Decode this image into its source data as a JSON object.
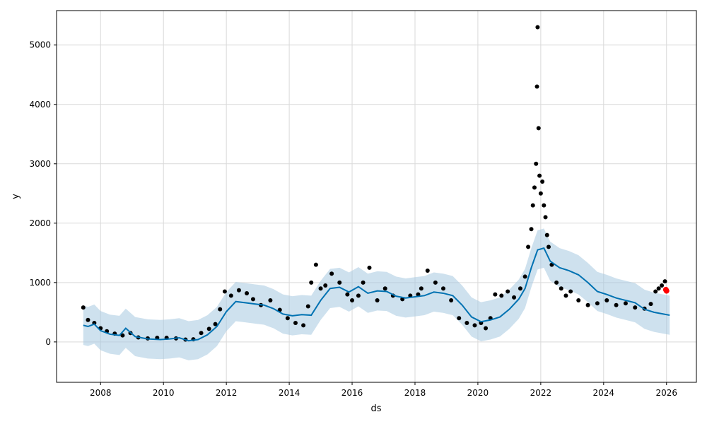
{
  "chart_data": {
    "type": "scatter",
    "xlabel": "ds",
    "ylabel": "y",
    "xlim": [
      2006.6,
      2026.95
    ],
    "ylim": [
      -680,
      5580
    ],
    "x_ticks": [
      2008,
      2010,
      2012,
      2014,
      2016,
      2018,
      2020,
      2022,
      2024,
      2026
    ],
    "y_ticks": [
      0,
      1000,
      2000,
      3000,
      4000,
      5000
    ],
    "grid": true,
    "colors": {
      "observed": "#000000",
      "forecast": "#0072B2",
      "interval": "#A6C8E0",
      "highlight": "#FF0000"
    },
    "series": [
      {
        "kind": "observed",
        "x": [
          2007.45,
          2007.6,
          2007.8,
          2008.0,
          2008.2,
          2008.45,
          2008.7,
          2008.95,
          2009.2,
          2009.5,
          2009.8,
          2010.1,
          2010.4,
          2010.7,
          2010.95,
          2011.2,
          2011.45,
          2011.65,
          2011.8,
          2011.95,
          2012.15,
          2012.4,
          2012.65,
          2012.85,
          2013.1,
          2013.4,
          2013.7,
          2013.95,
          2014.2,
          2014.45,
          2014.6,
          2014.7,
          2014.85,
          2015.0,
          2015.15,
          2015.35,
          2015.6,
          2015.85,
          2016.0,
          2016.2,
          2016.35,
          2016.55,
          2016.8,
          2017.05,
          2017.3,
          2017.6,
          2017.85,
          2018.1,
          2018.2,
          2018.4,
          2018.65,
          2018.9,
          2019.15,
          2019.4,
          2019.65,
          2019.9,
          2020.1,
          2020.25,
          2020.4,
          2020.55,
          2020.75,
          2020.95,
          2021.15,
          2021.35,
          2021.5,
          2021.6,
          2021.7,
          2021.75,
          2021.8,
          2021.85,
          2021.88,
          2021.9,
          2021.93,
          2021.96,
          2022.0,
          2022.05,
          2022.1,
          2022.15,
          2022.2,
          2022.25,
          2022.35,
          2022.5,
          2022.65,
          2022.8,
          2022.95,
          2023.2,
          2023.5,
          2023.8,
          2024.1,
          2024.4,
          2024.7,
          2025.0,
          2025.3,
          2025.5,
          2025.65,
          2025.75,
          2025.85,
          2025.95
        ],
        "y": [
          580,
          370,
          320,
          230,
          180,
          140,
          110,
          150,
          75,
          60,
          70,
          70,
          60,
          40,
          45,
          150,
          220,
          300,
          550,
          850,
          780,
          870,
          820,
          720,
          620,
          700,
          540,
          400,
          320,
          280,
          600,
          1000,
          1300,
          900,
          950,
          1150,
          1000,
          800,
          700,
          780,
          1000,
          1250,
          700,
          900,
          780,
          720,
          780,
          800,
          900,
          1200,
          1000,
          900,
          700,
          400,
          320,
          280,
          320,
          230,
          400,
          800,
          780,
          850,
          750,
          900,
          1100,
          1600,
          1900,
          2300,
          2600,
          3000,
          4300,
          5300,
          3600,
          2800,
          2500,
          2700,
          2300,
          2100,
          1800,
          1600,
          1300,
          1000,
          900,
          780,
          850,
          700,
          620,
          650,
          700,
          620,
          650,
          580,
          560,
          640,
          850,
          900,
          950,
          1020
        ]
      },
      {
        "kind": "forecast",
        "x": [
          2007.45,
          2007.6,
          2007.8,
          2008.0,
          2008.3,
          2008.6,
          2008.8,
          2009.1,
          2009.5,
          2009.9,
          2010.2,
          2010.5,
          2010.8,
          2011.1,
          2011.4,
          2011.7,
          2012.0,
          2012.3,
          2012.6,
          2012.9,
          2013.2,
          2013.5,
          2013.8,
          2014.1,
          2014.4,
          2014.7,
          2015.0,
          2015.3,
          2015.6,
          2015.9,
          2016.2,
          2016.5,
          2016.8,
          2017.1,
          2017.4,
          2017.7,
          2018.0,
          2018.3,
          2018.6,
          2018.9,
          2019.2,
          2019.5,
          2019.8,
          2020.1,
          2020.4,
          2020.7,
          2021.0,
          2021.3,
          2021.5,
          2021.7,
          2021.9,
          2022.1,
          2022.3,
          2022.6,
          2022.9,
          2023.2,
          2023.5,
          2023.8,
          2024.1,
          2024.4,
          2024.7,
          2025.0,
          2025.3,
          2025.6,
          2025.9,
          2026.1
        ],
        "y": [
          280,
          260,
          300,
          190,
          130,
          110,
          230,
          90,
          50,
          40,
          50,
          70,
          20,
          40,
          120,
          260,
          510,
          680,
          660,
          640,
          620,
          560,
          470,
          440,
          460,
          450,
          700,
          900,
          920,
          840,
          930,
          820,
          860,
          850,
          770,
          740,
          760,
          780,
          840,
          820,
          780,
          620,
          420,
          340,
          370,
          420,
          550,
          720,
          900,
          1250,
          1550,
          1580,
          1360,
          1250,
          1200,
          1130,
          1000,
          850,
          800,
          740,
          700,
          660,
          550,
          500,
          470,
          450
        ]
      },
      {
        "kind": "highlight",
        "x": [
          2025.98,
          2026.0
        ],
        "y": [
          880,
          860
        ]
      }
    ]
  }
}
